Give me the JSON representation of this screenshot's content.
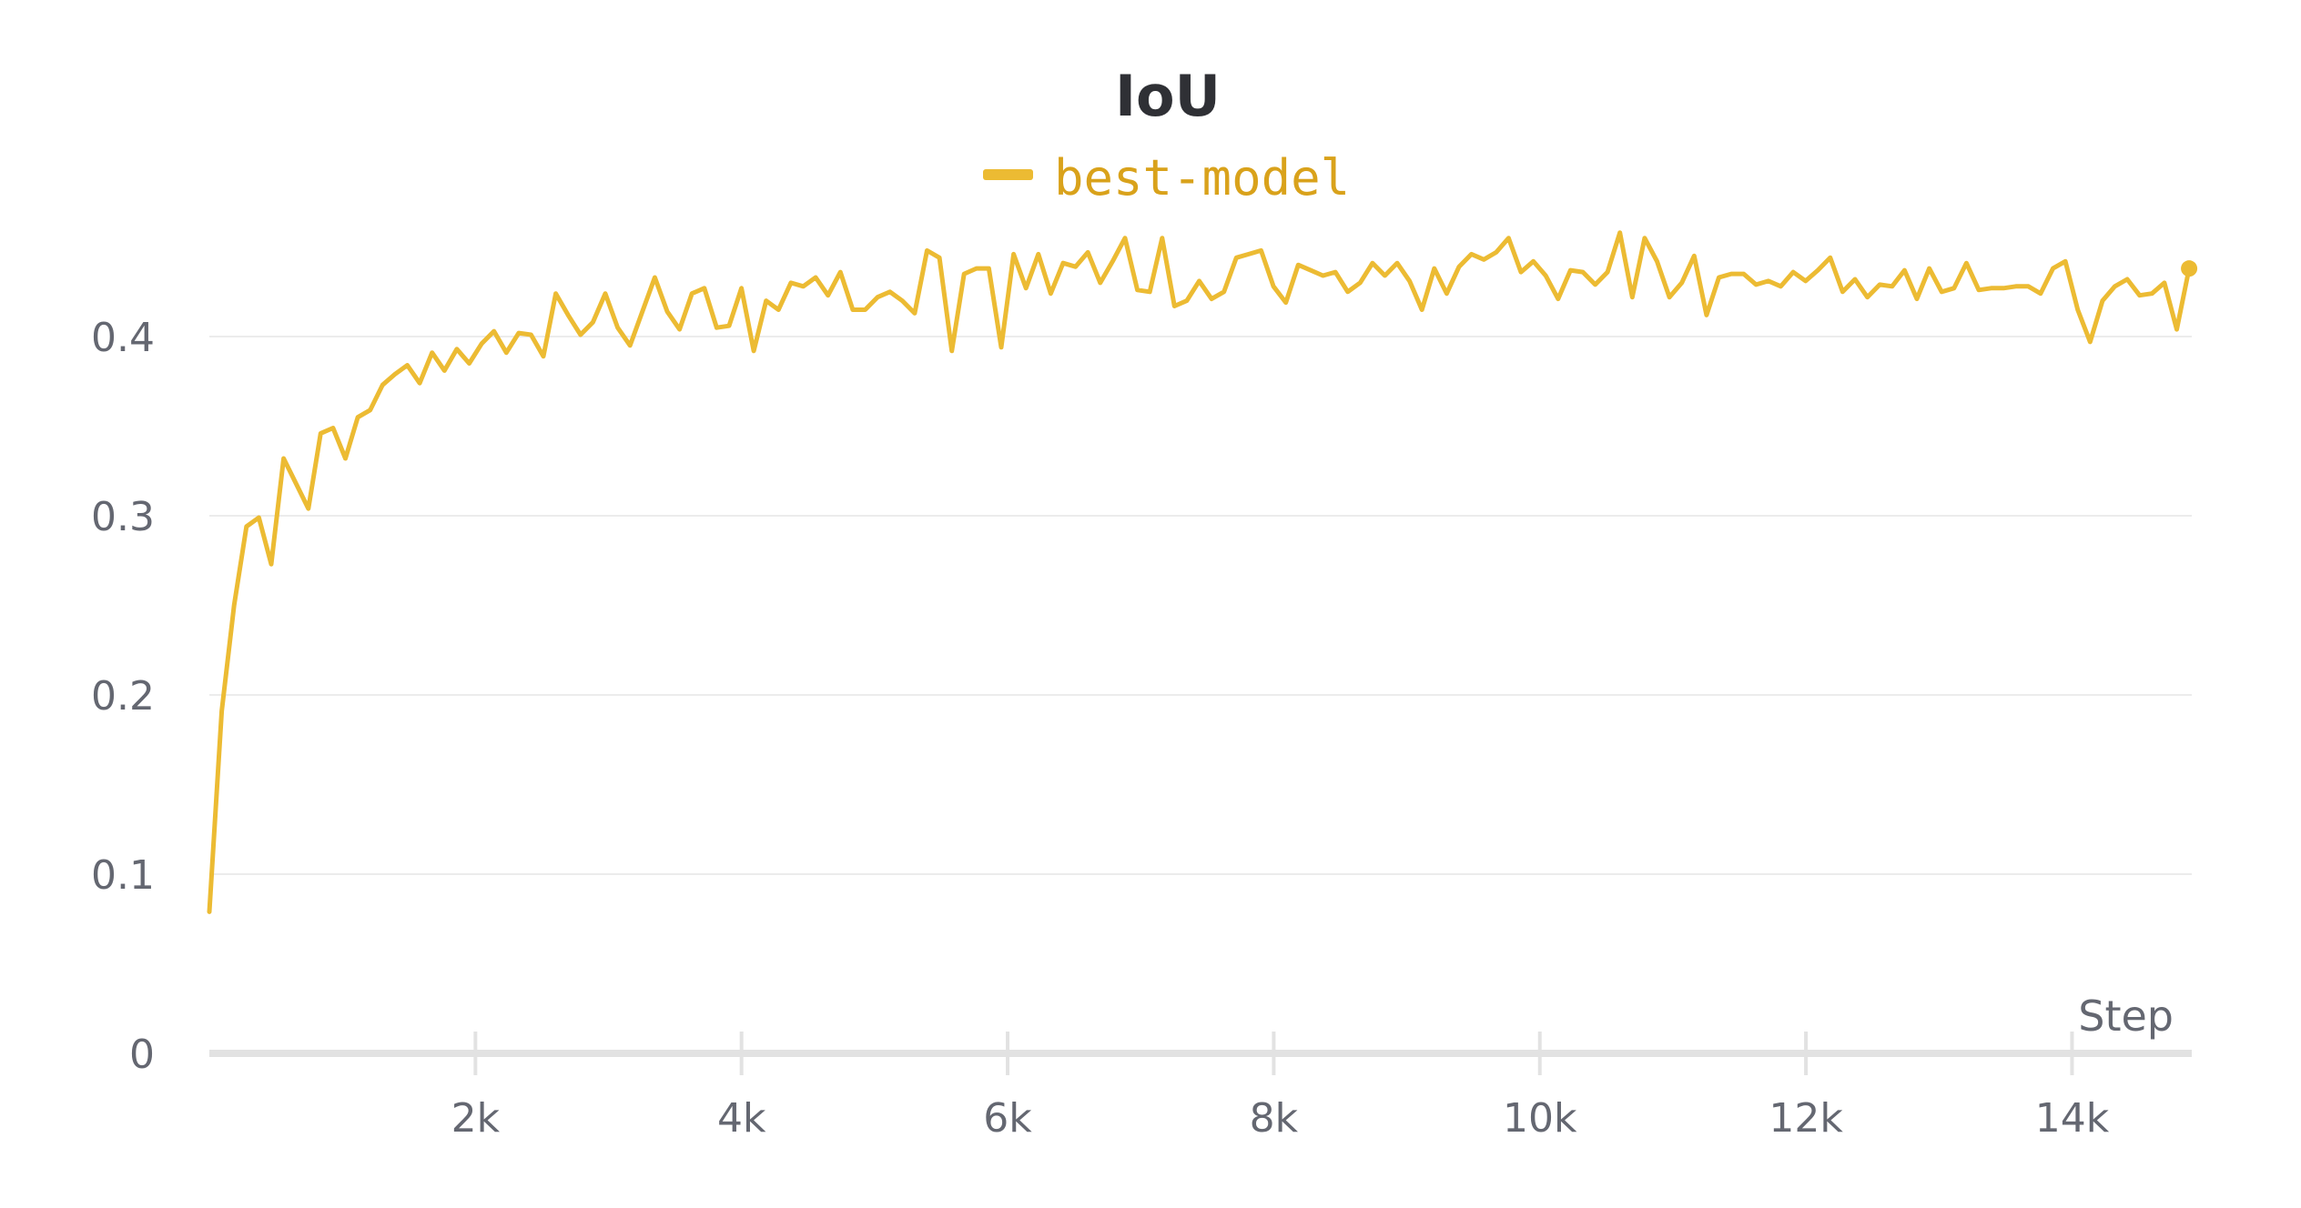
{
  "chart_data": {
    "type": "line",
    "title": "IoU",
    "xlabel": "Step",
    "ylabel": "",
    "xlim": [
      0,
      14900
    ],
    "ylim": [
      0,
      0.4
    ],
    "x_ticks": [
      2000,
      4000,
      6000,
      8000,
      10000,
      12000,
      14000
    ],
    "x_tick_labels": [
      "2k",
      "4k",
      "6k",
      "8k",
      "10k",
      "12k",
      "14k"
    ],
    "y_ticks": [
      0,
      0.1,
      0.2,
      0.3,
      0.4
    ],
    "y_tick_labels": [
      "0",
      "0.1",
      "0.2",
      "0.3",
      "0.4"
    ],
    "grid": true,
    "legend_position": "top-center",
    "colors": {
      "series": "#ecbb33",
      "legend_text": "#d9a21b",
      "grid": "#ececec",
      "axis": "#e2e2e2",
      "tick_text": "#646771",
      "title": "#2f3035"
    },
    "series": [
      {
        "name": "best-model",
        "x": [
          0,
          93,
          186,
          279,
          372,
          465,
          558,
          651,
          744,
          837,
          930,
          1023,
          1116,
          1209,
          1302,
          1395,
          1488,
          1581,
          1674,
          1767,
          1860,
          1953,
          2046,
          2139,
          2232,
          2325,
          2418,
          2511,
          2604,
          2697,
          2790,
          2883,
          2976,
          3069,
          3162,
          3255,
          3348,
          3441,
          3534,
          3627,
          3720,
          3813,
          3906,
          3999,
          4092,
          4185,
          4278,
          4371,
          4464,
          4557,
          4650,
          4743,
          4836,
          4929,
          5022,
          5115,
          5208,
          5301,
          5394,
          5487,
          5580,
          5673,
          5766,
          5859,
          5952,
          6045,
          6138,
          6231,
          6324,
          6417,
          6510,
          6603,
          6696,
          6789,
          6882,
          6975,
          7068,
          7161,
          7254,
          7347,
          7440,
          7533,
          7626,
          7719,
          7812,
          7905,
          7998,
          8091,
          8184,
          8277,
          8370,
          8463,
          8556,
          8649,
          8742,
          8835,
          8928,
          9021,
          9114,
          9207,
          9300,
          9393,
          9486,
          9579,
          9672,
          9765,
          9858,
          9951,
          10044,
          10137,
          10230,
          10323,
          10416,
          10509,
          10602,
          10695,
          10788,
          10881,
          10974,
          11067,
          11160,
          11253,
          11346,
          11439,
          11532,
          11625,
          11718,
          11811,
          11904,
          11997,
          12090,
          12183,
          12276,
          12369,
          12462,
          12555,
          12648,
          12741,
          12834,
          12927,
          13020,
          13113,
          13206,
          13299,
          13392,
          13485,
          13578,
          13671,
          13764,
          13857,
          13950,
          14043,
          14136,
          14229,
          14322,
          14415,
          14508,
          14601,
          14694,
          14787,
          14880
        ],
        "values": [
          0.079,
          0.191,
          0.25,
          0.294,
          0.299,
          0.273,
          0.332,
          0.318,
          0.304,
          0.346,
          0.349,
          0.332,
          0.355,
          0.359,
          0.373,
          0.379,
          0.384,
          0.374,
          0.391,
          0.381,
          0.393,
          0.385,
          0.396,
          0.403,
          0.391,
          0.402,
          0.401,
          0.389,
          0.424,
          0.412,
          0.401,
          0.408,
          0.424,
          0.405,
          0.395,
          0.414,
          0.433,
          0.414,
          0.404,
          0.424,
          0.427,
          0.405,
          0.406,
          0.427,
          0.392,
          0.42,
          0.415,
          0.43,
          0.428,
          0.433,
          0.423,
          0.436,
          0.415,
          0.415,
          0.422,
          0.425,
          0.42,
          0.413,
          0.448,
          0.444,
          0.392,
          0.435,
          0.438,
          0.438,
          0.394,
          0.446,
          0.427,
          0.446,
          0.424,
          0.441,
          0.439,
          0.447,
          0.43,
          0.442,
          0.455,
          0.426,
          0.425,
          0.455,
          0.417,
          0.42,
          0.431,
          0.421,
          0.425,
          0.444,
          0.446,
          0.448,
          0.428,
          0.419,
          0.44,
          0.437,
          0.434,
          0.436,
          0.425,
          0.43,
          0.441,
          0.434,
          0.441,
          0.431,
          0.415,
          0.438,
          0.424,
          0.439,
          0.446,
          0.443,
          0.447,
          0.455,
          0.436,
          0.442,
          0.434,
          0.421,
          0.437,
          0.436,
          0.429,
          0.436,
          0.458,
          0.422,
          0.455,
          0.442,
          0.422,
          0.43,
          0.445,
          0.412,
          0.433,
          0.435,
          0.435,
          0.429,
          0.431,
          0.428,
          0.436,
          0.431,
          0.437,
          0.444,
          0.425,
          0.432,
          0.422,
          0.429,
          0.428,
          0.437,
          0.421,
          0.438,
          0.425,
          0.427,
          0.441,
          0.426,
          0.427,
          0.427,
          0.428,
          0.428,
          0.424,
          0.438,
          0.442,
          0.415,
          0.397,
          0.42,
          0.428,
          0.432,
          0.423,
          0.424,
          0.43,
          0.404,
          0.438
        ]
      }
    ]
  }
}
